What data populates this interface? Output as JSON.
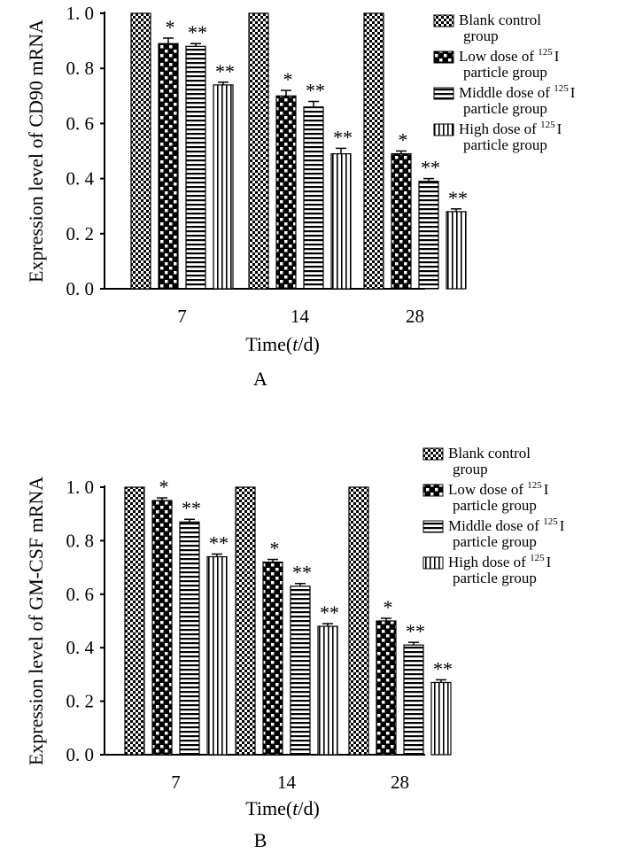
{
  "chart_data": [
    {
      "type": "bar",
      "panel_label": "A",
      "title": "",
      "ylabel": "Expression level of CD90 mRNA",
      "xlabel_prefix": "Time(",
      "xlabel_var": "t",
      "xlabel_suffix": "/d)",
      "ylim": [
        0,
        1.0
      ],
      "yticks": [
        "0. 0",
        "0. 2",
        "0. 4",
        "0. 6",
        "0. 8",
        "1. 0"
      ],
      "categories": [
        "7",
        "14",
        "28"
      ],
      "series": [
        {
          "name": "Blank control group",
          "values": [
            1.0,
            1.0,
            1.0
          ],
          "errors": [
            0,
            0,
            0
          ],
          "marks": [
            "",
            "",
            ""
          ],
          "pattern": "checker"
        },
        {
          "name": "Low dose of 125I particle group",
          "values": [
            0.89,
            0.7,
            0.49
          ],
          "errors": [
            0.02,
            0.02,
            0.01
          ],
          "marks": [
            "*",
            "*",
            "*"
          ],
          "pattern": "dots"
        },
        {
          "name": "Middle dose of 125I particle group",
          "values": [
            0.88,
            0.66,
            0.39
          ],
          "errors": [
            0.01,
            0.02,
            0.01
          ],
          "marks": [
            "**",
            "**",
            "**"
          ],
          "pattern": "hlines"
        },
        {
          "name": "High dose of 125I particle group",
          "values": [
            0.74,
            0.49,
            0.28
          ],
          "errors": [
            0.01,
            0.02,
            0.01
          ],
          "marks": [
            "**",
            "**",
            "**"
          ],
          "pattern": "vlines"
        }
      ],
      "legend": [
        {
          "line1": "Blank control",
          "line2": "group"
        },
        {
          "line1": "Low dose of ",
          "sup": "125",
          "iso": "I",
          "line2": "particle group"
        },
        {
          "line1": "Middle dose of ",
          "sup": "125",
          "iso": "I",
          "line2": "particle group"
        },
        {
          "line1": "High dose of ",
          "sup": "125",
          "iso": "I",
          "line2": "particle group"
        }
      ],
      "legend_position": "top-right"
    },
    {
      "type": "bar",
      "panel_label": "B",
      "title": "",
      "ylabel": "Expression level of GM-CSF mRNA",
      "xlabel_prefix": "Time(",
      "xlabel_var": "t",
      "xlabel_suffix": "/d)",
      "ylim": [
        0,
        1.0
      ],
      "yticks": [
        "0. 0",
        "0. 2",
        "0. 4",
        "0. 6",
        "0. 8",
        "1. 0"
      ],
      "categories": [
        "7",
        "14",
        "28"
      ],
      "series": [
        {
          "name": "Blank control group",
          "values": [
            1.0,
            1.0,
            1.0
          ],
          "errors": [
            0,
            0,
            0
          ],
          "marks": [
            "",
            "",
            ""
          ],
          "pattern": "checker"
        },
        {
          "name": "Low dose of 125I particle group",
          "values": [
            0.95,
            0.72,
            0.5
          ],
          "errors": [
            0.01,
            0.01,
            0.01
          ],
          "marks": [
            "*",
            "*",
            "*"
          ],
          "pattern": "dots"
        },
        {
          "name": "Middle dose of 125I particle group",
          "values": [
            0.87,
            0.63,
            0.41
          ],
          "errors": [
            0.01,
            0.01,
            0.01
          ],
          "marks": [
            "**",
            "**",
            "**"
          ],
          "pattern": "hlines"
        },
        {
          "name": "High dose of 125I particle group",
          "values": [
            0.74,
            0.48,
            0.27
          ],
          "errors": [
            0.01,
            0.01,
            0.01
          ],
          "marks": [
            "**",
            "**",
            "**"
          ],
          "pattern": "vlines"
        }
      ],
      "legend": [
        {
          "line1": "Blank control",
          "line2": "group"
        },
        {
          "line1": "Low dose of ",
          "sup": "125",
          "iso": "I",
          "line2": "particle group"
        },
        {
          "line1": "Middle dose of ",
          "sup": "125",
          "iso": "I",
          "line2": "particle group"
        },
        {
          "line1": "High dose of ",
          "sup": "125",
          "iso": "I",
          "line2": "particle group"
        }
      ],
      "legend_position": "top-right"
    }
  ]
}
